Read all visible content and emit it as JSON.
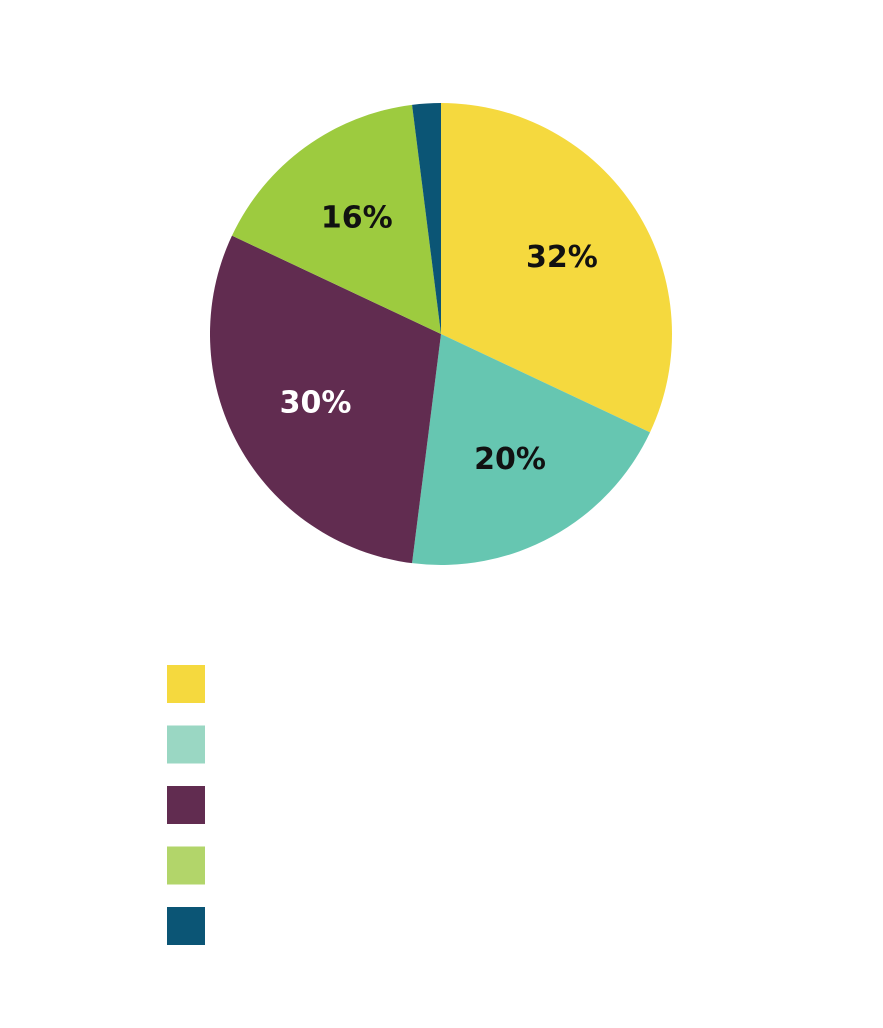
{
  "chart_data": {
    "type": "pie",
    "title": "",
    "slices": [
      {
        "value": 32,
        "label": "32%",
        "color": "#F5D93E",
        "label_color": "#111111",
        "legend_color": "#F5D93E"
      },
      {
        "value": 20,
        "label": "20%",
        "color": "#66C6B1",
        "label_color": "#111111",
        "legend_color": "#9AD7C3"
      },
      {
        "value": 30,
        "label": "30%",
        "color": "#612C50",
        "label_color": "#ffffff",
        "legend_color": "#612C50"
      },
      {
        "value": 16,
        "label": "16%",
        "color": "#9DCB3F",
        "label_color": "#111111",
        "legend_color": "#B2D56A"
      },
      {
        "value": 2,
        "label": "",
        "color": "#0B5575",
        "label_color": "#ffffff",
        "legend_color": "#0B5575"
      }
    ],
    "start_angle_deg": 0,
    "direction": "clockwise",
    "legend": {
      "placement": "bottom-left",
      "entries": [
        "",
        "",
        "",
        "",
        ""
      ]
    }
  }
}
